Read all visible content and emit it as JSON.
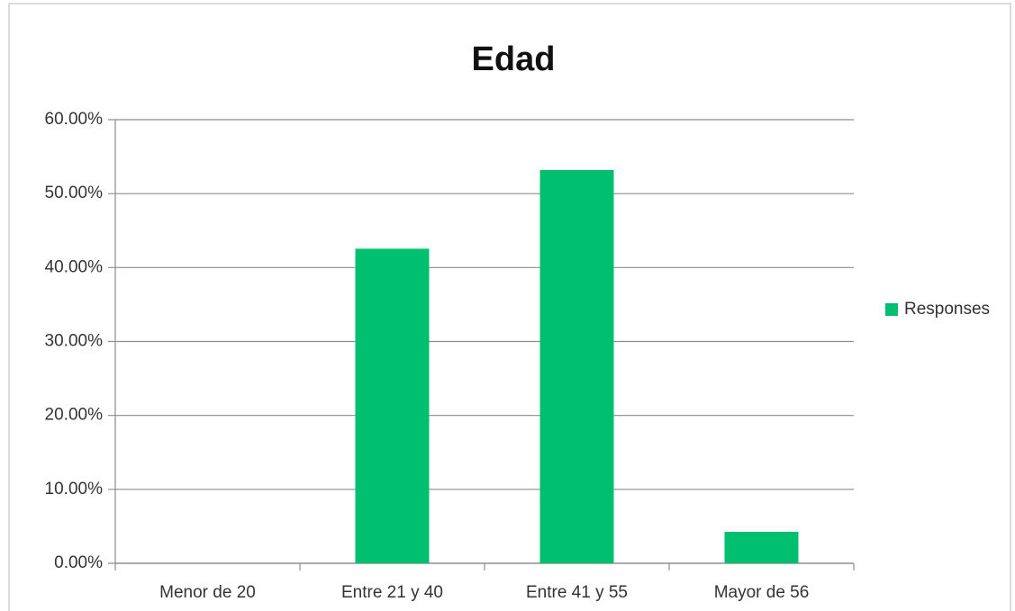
{
  "chart_data": {
    "type": "bar",
    "title": "Edad",
    "categories": [
      "Menor de 20",
      "Entre 21 y 40",
      "Entre 41 y 55",
      "Mayor de 56"
    ],
    "series": [
      {
        "name": "Responses",
        "color": "#00bf6f",
        "values": [
          0,
          42.55,
          53.19,
          4.26
        ]
      }
    ],
    "ylim": [
      0,
      60
    ],
    "yticks": [
      {
        "value": 0,
        "label": "0.00%"
      },
      {
        "value": 10,
        "label": "10.00%"
      },
      {
        "value": 20,
        "label": "20.00%"
      },
      {
        "value": 30,
        "label": "30.00%"
      },
      {
        "value": 40,
        "label": "40.00%"
      },
      {
        "value": 50,
        "label": "50.00%"
      },
      {
        "value": 60,
        "label": "60.00%"
      }
    ],
    "grid": true,
    "legend": "right"
  }
}
